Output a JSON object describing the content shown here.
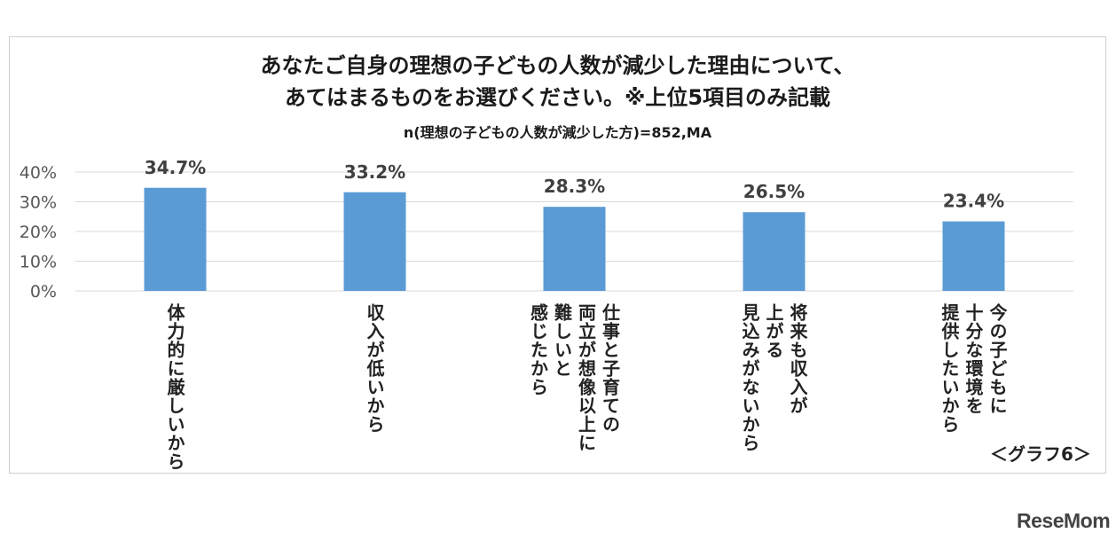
{
  "title_line1": "あなたご自身の理想の子どもの人数が減少した理由について、",
  "title_line2": "あてはまるものをお選びください。※上位5項目のみ記載",
  "subtitle": "n(理想の子どもの人数が減少した方)=852,MA",
  "graph_label": "＜グラフ6＞",
  "logo_text": "ReseMom",
  "colors": {
    "bar": "#5b9bd5",
    "grid": "#d9d9d9",
    "axis_text": "#595959"
  },
  "chart_data": {
    "type": "bar",
    "title": "あなたご自身の理想の子どもの人数が減少した理由について、あてはまるものをお選びください。※上位5項目のみ記載",
    "subtitle": "n(理想の子どもの人数が減少した方)=852,MA",
    "ylim": [
      0,
      40
    ],
    "yticks": [
      "0%",
      "10%",
      "20%",
      "30%",
      "40%"
    ],
    "grid": true,
    "categories": [
      "体力的に厳しいから",
      "収入が低いから",
      "仕事と子育ての両立が想像以上に難しいと感じたから",
      "将来も収入が上がる見込みがないから",
      "今の子どもに十分な環境を提供したいから"
    ],
    "category_lines": [
      [
        "体力的に厳しいから"
      ],
      [
        "収入が低いから"
      ],
      [
        "仕事と子育ての",
        "両立が想像以上に",
        "難しいと",
        "感じたから"
      ],
      [
        "将来も収入が",
        "上がる",
        "見込みがないから"
      ],
      [
        "今の子どもに",
        "十分な環境を",
        "提供したいから"
      ]
    ],
    "values": [
      34.7,
      33.2,
      28.3,
      26.5,
      23.4
    ],
    "data_labels": [
      "34.7%",
      "33.2%",
      "28.3%",
      "26.5%",
      "23.4%"
    ]
  }
}
